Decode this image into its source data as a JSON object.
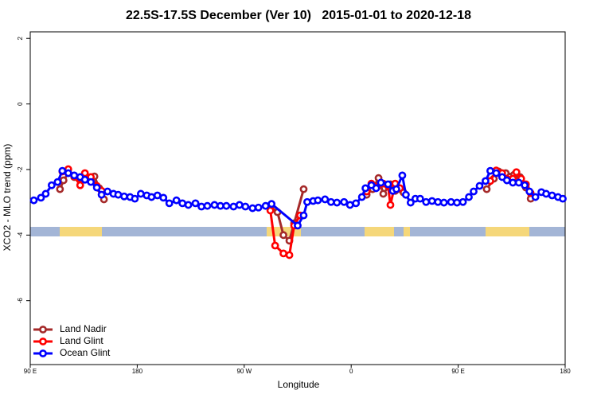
{
  "chart_data": {
    "type": "line",
    "title": "22.5S-17.5S December (Ver 10)   2015-01-01 to 2020-12-18",
    "x_label": "Longitude",
    "y_label": "XCO2 - MLO trend (ppm)",
    "xlim": [
      90,
      540
    ],
    "xticks": [
      {
        "value": 90,
        "label": "90 E"
      },
      {
        "value": 180,
        "label": "180"
      },
      {
        "value": 270,
        "label": "90 W"
      },
      {
        "value": 360,
        "label": "0"
      },
      {
        "value": 450,
        "label": "90 E"
      },
      {
        "value": 540,
        "label": "180"
      }
    ],
    "ylim": [
      -7.95,
      2.2
    ],
    "yticks": [
      2,
      0,
      -2,
      -4,
      -6
    ],
    "legend": "bottom left",
    "series": [
      {
        "name": "Land Nadir",
        "color": "#a52a2a",
        "x": [
          115,
          118,
          122,
          127,
          132,
          136,
          141,
          144,
          148,
          152,
          null,
          292,
          298,
          303,
          308,
          312,
          320,
          null,
          373,
          378,
          383,
          387,
          393,
          397,
          404,
          null,
          474,
          480,
          484,
          487,
          490,
          497,
          502,
          507,
          511
        ],
        "values": [
          -2.6,
          -2.33,
          -2.11,
          -2.23,
          -2.26,
          -2.16,
          -2.26,
          -2.21,
          -2.57,
          -2.91,
          null,
          -3.13,
          -3.3,
          -4.0,
          -4.17,
          -3.64,
          -2.6,
          null,
          -2.77,
          -2.6,
          -2.26,
          -2.74,
          -2.45,
          -2.65,
          -2.7,
          null,
          -2.6,
          -2.28,
          -2.06,
          -2.21,
          -2.11,
          -2.16,
          -2.23,
          -2.55,
          -2.89
        ]
      },
      {
        "name": "Land Glint",
        "color": "#ff0000",
        "x": [
          117,
          122,
          127,
          132,
          136,
          141,
          146,
          150,
          null,
          292,
          296,
          303,
          308,
          312,
          317,
          null,
          373,
          377,
          382,
          387,
          391,
          393,
          397,
          401,
          null,
          477,
          482,
          487,
          491,
          496,
          499,
          503,
          507,
          511
        ],
        "values": [
          -2.06,
          -1.99,
          -2.21,
          -2.48,
          -2.11,
          -2.23,
          -2.5,
          -2.65,
          null,
          -3.25,
          -4.32,
          -4.56,
          -4.61,
          -3.71,
          -3.4,
          null,
          -2.67,
          -2.43,
          -2.52,
          -2.43,
          -2.5,
          -3.08,
          -2.43,
          -2.57,
          null,
          -2.35,
          -2.03,
          -2.11,
          -2.28,
          -2.28,
          -2.08,
          -2.28,
          -2.45,
          -2.72
        ]
      },
      {
        "name": "Ocean Glint",
        "color": "#0000ff",
        "x": [
          93,
          99,
          103,
          108,
          113,
          117,
          122,
          127,
          132,
          136,
          141,
          146,
          150,
          155,
          160,
          164,
          169,
          174,
          178,
          183,
          188,
          192,
          197,
          202,
          207,
          213,
          218,
          223,
          229,
          234,
          239,
          245,
          250,
          255,
          261,
          266,
          271,
          277,
          282,
          288,
          293,
          315,
          320,
          323,
          328,
          332,
          338,
          343,
          348,
          354,
          359,
          364,
          369,
          372,
          377,
          381,
          385,
          391,
          395,
          398,
          403,
          406,
          410,
          414,
          418,
          423,
          428,
          433,
          438,
          444,
          449,
          454,
          459,
          463,
          468,
          473,
          477,
          482,
          487,
          491,
          496,
          501,
          506,
          510,
          515,
          520,
          524,
          529,
          534,
          538
        ],
        "values": [
          -2.94,
          -2.86,
          -2.74,
          -2.48,
          -2.38,
          -2.04,
          -2.11,
          -2.18,
          -2.23,
          -2.31,
          -2.38,
          -2.55,
          -2.77,
          -2.67,
          -2.74,
          -2.77,
          -2.82,
          -2.84,
          -2.89,
          -2.74,
          -2.79,
          -2.84,
          -2.79,
          -2.86,
          -3.03,
          -2.94,
          -3.03,
          -3.08,
          -3.03,
          -3.13,
          -3.11,
          -3.08,
          -3.11,
          -3.11,
          -3.13,
          -3.08,
          -3.13,
          -3.18,
          -3.16,
          -3.11,
          -3.05,
          -3.71,
          -3.4,
          -2.99,
          -2.96,
          -2.94,
          -2.91,
          -2.99,
          -3.01,
          -2.99,
          -3.08,
          -3.03,
          -2.84,
          -2.57,
          -2.48,
          -2.57,
          -2.4,
          -2.45,
          -2.65,
          -2.6,
          -2.18,
          -2.77,
          -3.01,
          -2.89,
          -2.89,
          -2.99,
          -2.96,
          -2.99,
          -3.01,
          -2.99,
          -3.01,
          -2.99,
          -2.84,
          -2.67,
          -2.5,
          -2.35,
          -2.04,
          -2.11,
          -2.23,
          -2.33,
          -2.4,
          -2.4,
          -2.48,
          -2.67,
          -2.84,
          -2.69,
          -2.74,
          -2.79,
          -2.84,
          -2.89
        ]
      }
    ]
  }
}
